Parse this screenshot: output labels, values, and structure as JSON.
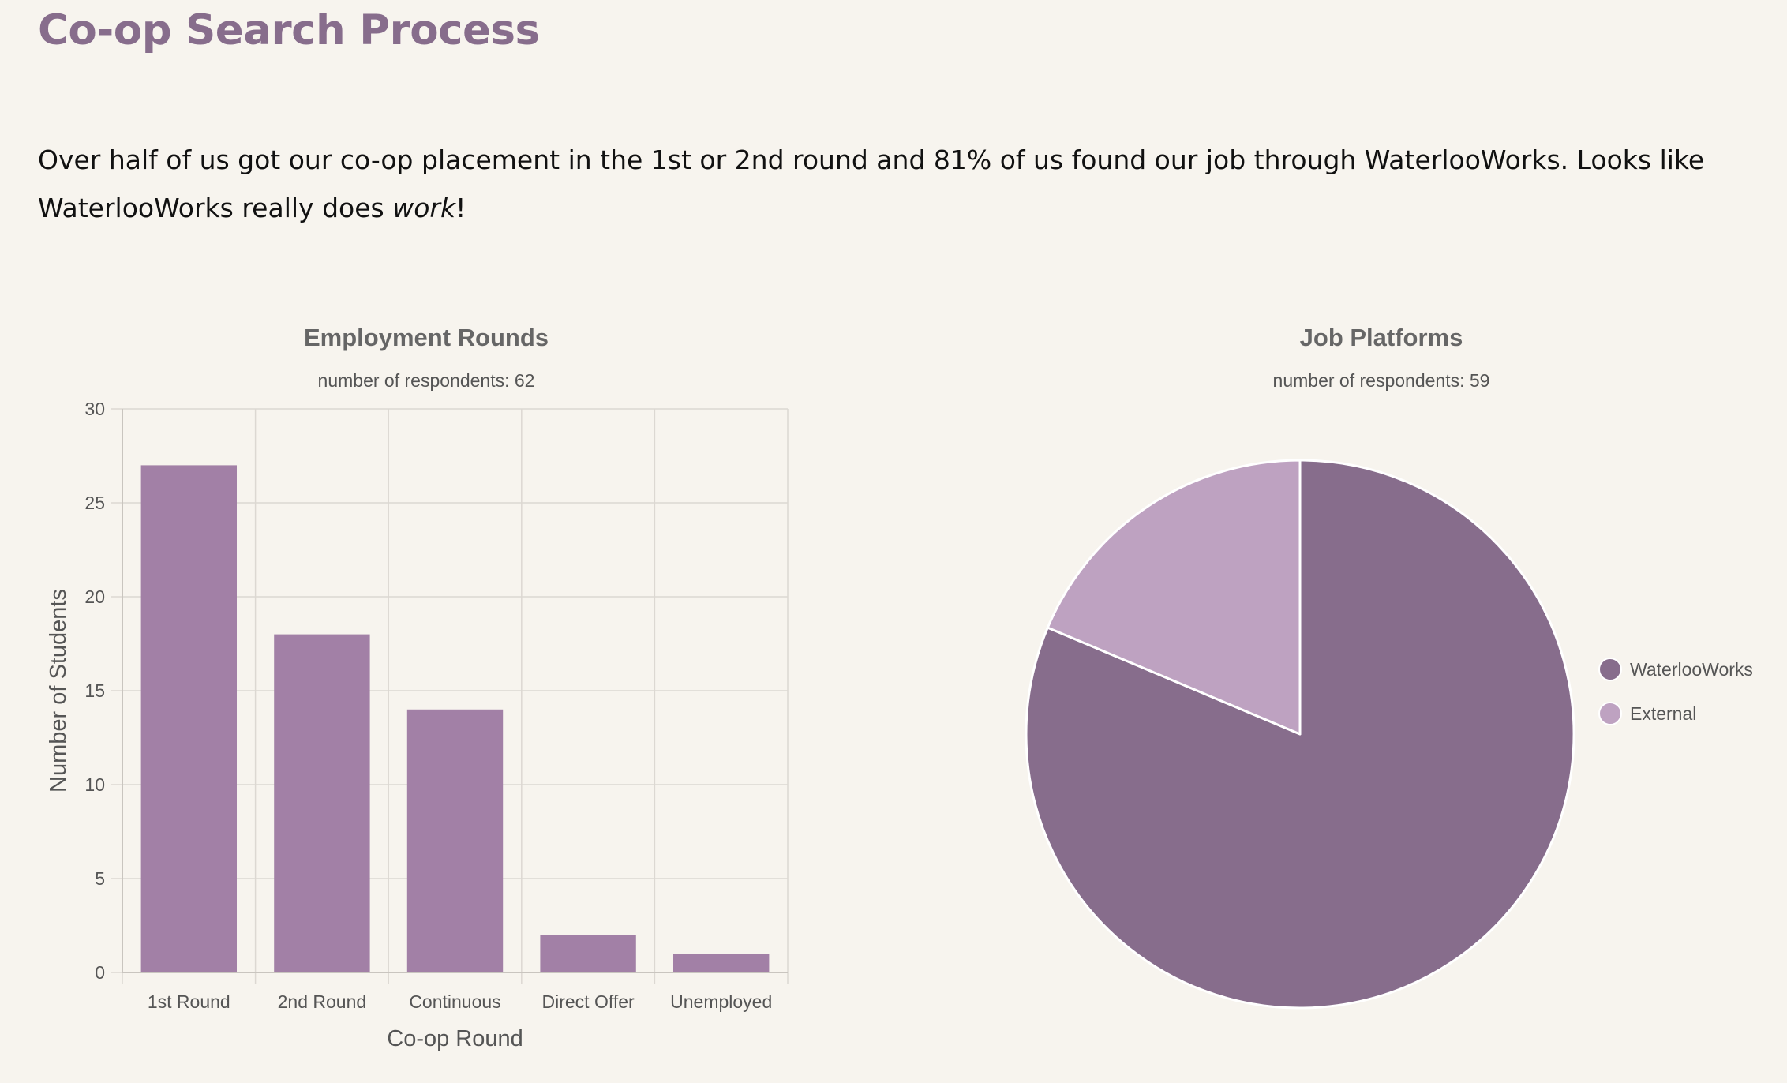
{
  "page": {
    "title": "Co-op Search Process",
    "intro_before": "Over half of us got our co-op placement in the 1st or 2nd round and 81% of us found our job through WaterlooWorks. Looks like WaterlooWorks really does ",
    "intro_emphasis": "work",
    "intro_after": "!"
  },
  "colors": {
    "heading": "#876d8c",
    "bar": "#a280a6",
    "pie_primary": "#876d8c",
    "pie_secondary": "#bea2c1",
    "grid": "#dcd8d2",
    "background": "#f7f4ee"
  },
  "chart_data": [
    {
      "type": "bar",
      "title": "Employment Rounds",
      "subtitle": "number of respondents: 62",
      "categories": [
        "1st Round",
        "2nd Round",
        "Continuous",
        "Direct Offer",
        "Unemployed"
      ],
      "values": [
        27,
        18,
        14,
        2,
        1
      ],
      "xlabel": "Co-op Round",
      "ylabel": "Number of Students",
      "ylim": [
        0,
        30
      ],
      "yticks": [
        0,
        5,
        10,
        15,
        20,
        25,
        30
      ],
      "grid": true,
      "legend": "none"
    },
    {
      "type": "pie",
      "title": "Job Platforms",
      "subtitle": "number of respondents: 59",
      "labels": [
        "WaterlooWorks",
        "External"
      ],
      "values": [
        48,
        11
      ],
      "legend": "right"
    }
  ]
}
